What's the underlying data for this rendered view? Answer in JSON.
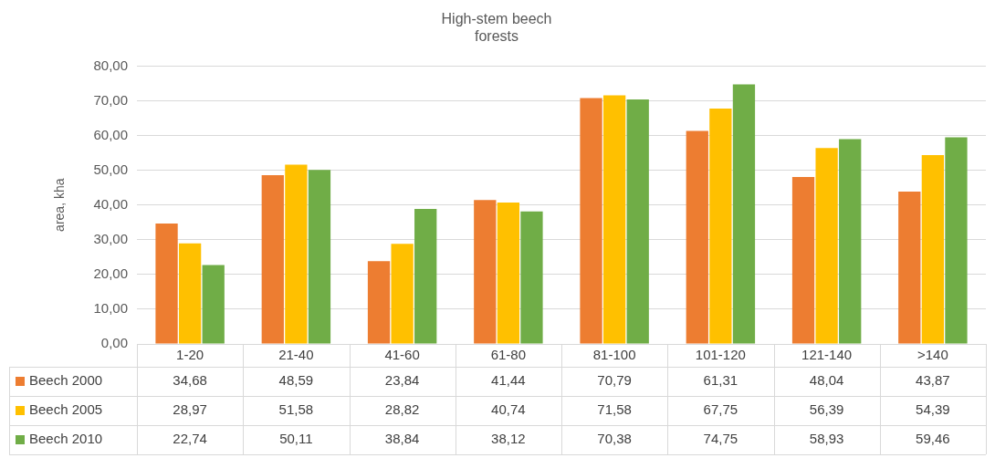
{
  "chart_data": {
    "type": "bar",
    "title": "High-stem beech\nforests",
    "ylabel": "area, kha",
    "categories": [
      "1-20",
      "21-40",
      "41-60",
      "61-80",
      "81-100",
      "101-120",
      "121-140",
      ">140"
    ],
    "series": [
      {
        "name": "Beech 2000",
        "color": "#ed7d31",
        "values": [
          34.68,
          48.59,
          23.84,
          41.44,
          70.79,
          61.31,
          48.04,
          43.87
        ],
        "value_labels": [
          "34,68",
          "48,59",
          "23,84",
          "41,44",
          "70,79",
          "61,31",
          "48,04",
          "43,87"
        ]
      },
      {
        "name": "Beech 2005",
        "color": "#ffc000",
        "values": [
          28.97,
          51.58,
          28.82,
          40.74,
          71.58,
          67.75,
          56.39,
          54.39
        ],
        "value_labels": [
          "28,97",
          "51,58",
          "28,82",
          "40,74",
          "71,58",
          "67,75",
          "56,39",
          "54,39"
        ]
      },
      {
        "name": "Beech 2010",
        "color": "#70ad47",
        "values": [
          22.74,
          50.11,
          38.84,
          38.12,
          70.38,
          74.75,
          58.93,
          59.46
        ],
        "value_labels": [
          "22,74",
          "50,11",
          "38,84",
          "38,12",
          "70,38",
          "74,75",
          "58,93",
          "59,46"
        ]
      }
    ],
    "ylim": [
      0,
      80
    ],
    "yticks": [
      {
        "value": 0,
        "label": "0,00"
      },
      {
        "value": 10,
        "label": "10,00"
      },
      {
        "value": 20,
        "label": "20,00"
      },
      {
        "value": 30,
        "label": "30,00"
      },
      {
        "value": 40,
        "label": "40,00"
      },
      {
        "value": 50,
        "label": "50,00"
      },
      {
        "value": 60,
        "label": "60,00"
      },
      {
        "value": 70,
        "label": "70,00"
      },
      {
        "value": 80,
        "label": "80,00"
      }
    ],
    "grid": "y",
    "legend": "bottom"
  }
}
